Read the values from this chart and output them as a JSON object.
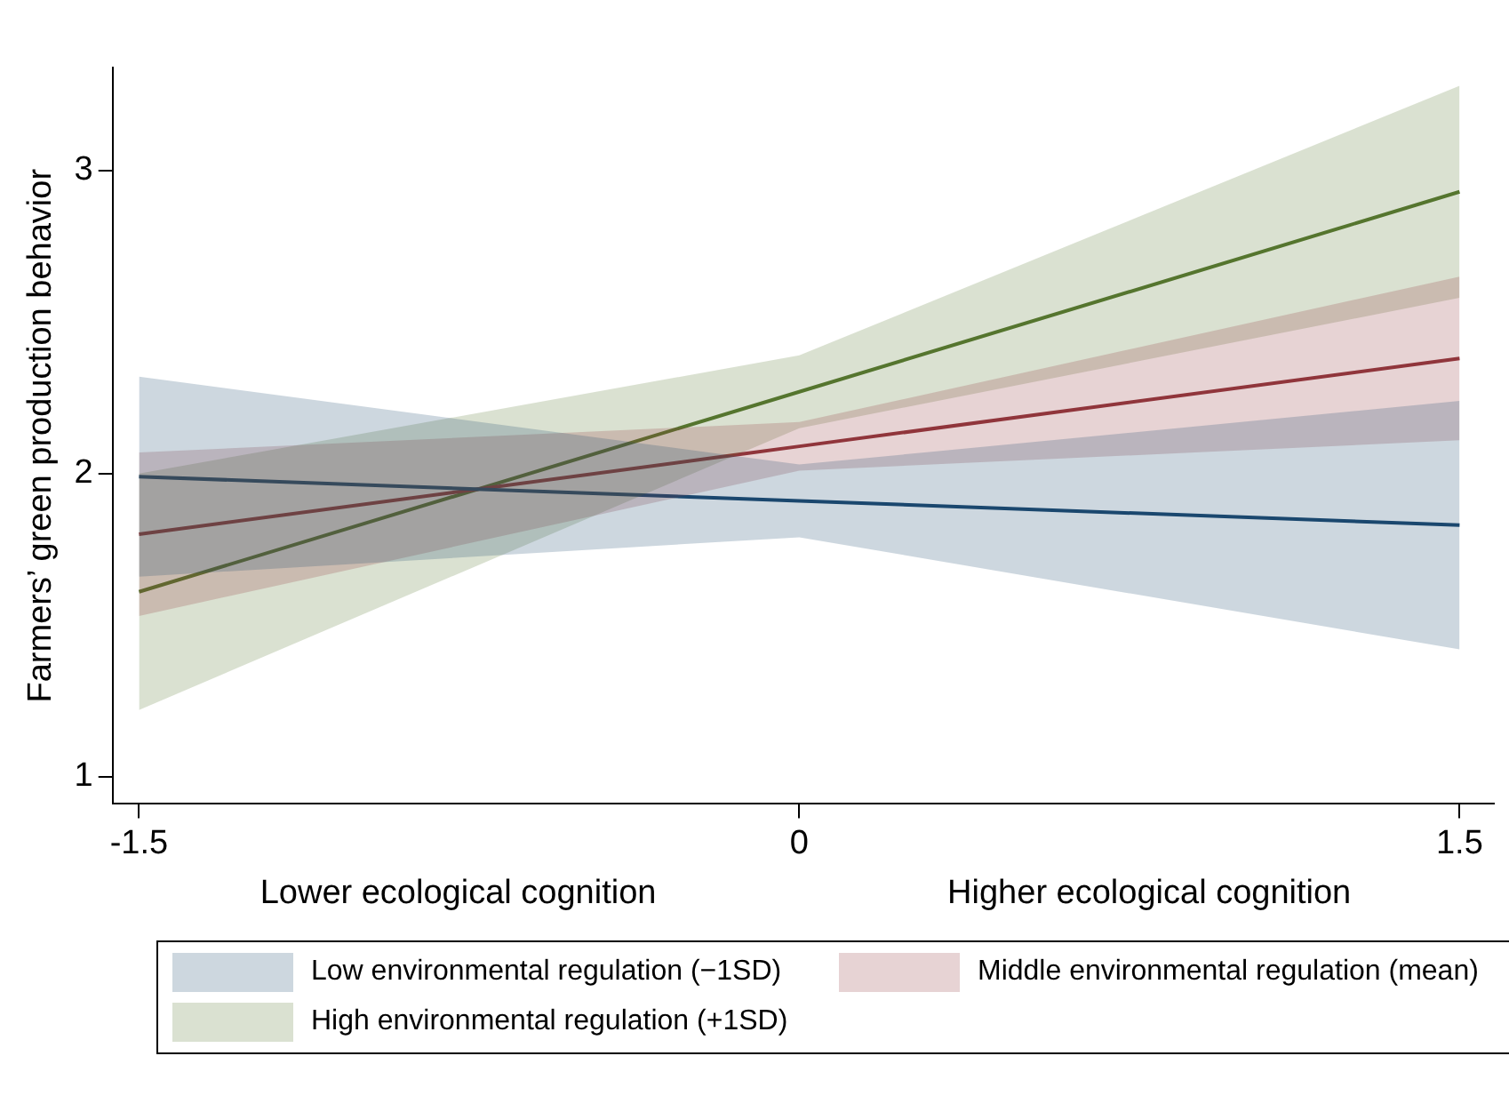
{
  "chart_data": {
    "type": "line",
    "ylabel": "Farmers’ green production behavior",
    "x": [
      -1.5,
      0,
      1.5
    ],
    "xlim": [
      -1.56,
      1.58
    ],
    "xticks": [
      -1.5,
      0,
      1.5
    ],
    "ylim": [
      0.91,
      3.34
    ],
    "yticks": [
      1,
      2,
      3
    ],
    "grid": false,
    "legend": "bottom",
    "marker": "none",
    "annotations": [
      "Lower ecological cognition",
      "Higher ecological cognition"
    ],
    "series": [
      {
        "name": "Low environmental regulation (−1SD)",
        "color": "#1a476f",
        "values": [
          1.99,
          1.91,
          1.83
        ],
        "lower": [
          1.66,
          1.79,
          1.42
        ],
        "upper": [
          2.32,
          2.03,
          2.24
        ]
      },
      {
        "name": "Middle environmental regulation (mean)",
        "color": "#90353b",
        "values": [
          1.8,
          2.09,
          2.38
        ],
        "lower": [
          1.53,
          2.01,
          2.11
        ],
        "upper": [
          2.07,
          2.17,
          2.65
        ]
      },
      {
        "name": "High environmental regulation (+1SD)",
        "color": "#55752f",
        "values": [
          1.61,
          2.27,
          2.93
        ],
        "lower": [
          1.22,
          2.15,
          2.58
        ],
        "upper": [
          2.0,
          2.39,
          3.28
        ]
      }
    ]
  }
}
